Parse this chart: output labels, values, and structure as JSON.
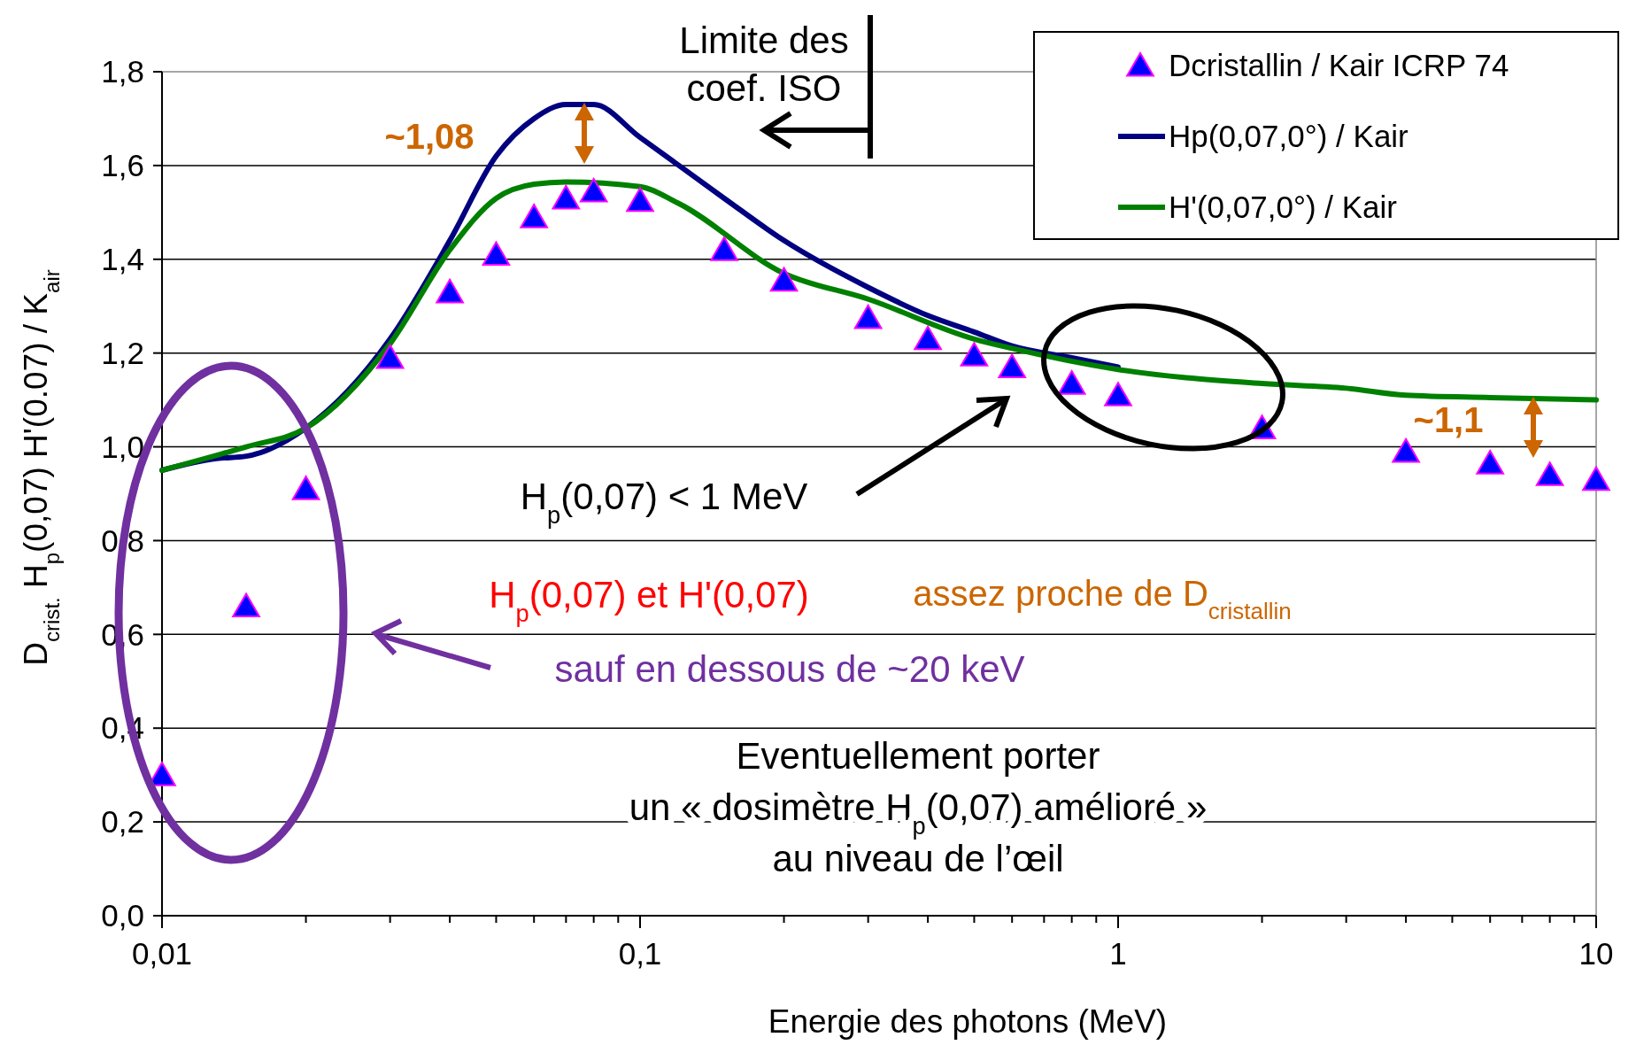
{
  "chart_data": {
    "type": "line",
    "xlabel": "Energie des photons (MeV)",
    "ylabel": "D$_{crist.}$  H$_{p}$(0,07) H'(0.07) / K$_{air}$",
    "log": "x",
    "grid": "y",
    "legend": "top right",
    "xlim": [
      0.01,
      10
    ],
    "ylim": [
      0,
      1.8
    ],
    "xticks": [
      {
        "value": 0.01,
        "label": "0,01"
      },
      {
        "value": 0.02,
        "label": null
      },
      {
        "value": 0.03,
        "label": null
      },
      {
        "value": 0.04,
        "label": null
      },
      {
        "value": 0.05,
        "label": null
      },
      {
        "value": 0.06,
        "label": null
      },
      {
        "value": 0.07,
        "label": null
      },
      {
        "value": 0.08,
        "label": null
      },
      {
        "value": 0.09,
        "label": null
      },
      {
        "value": 0.1,
        "label": "0,1"
      },
      {
        "value": 0.2,
        "label": null
      },
      {
        "value": 0.3,
        "label": null
      },
      {
        "value": 0.4,
        "label": null
      },
      {
        "value": 0.5,
        "label": null
      },
      {
        "value": 0.6,
        "label": null
      },
      {
        "value": 0.7,
        "label": null
      },
      {
        "value": 0.8,
        "label": null
      },
      {
        "value": 0.9,
        "label": null
      },
      {
        "value": 1,
        "label": "1"
      },
      {
        "value": 2,
        "label": null
      },
      {
        "value": 3,
        "label": null
      },
      {
        "value": 4,
        "label": null
      },
      {
        "value": 5,
        "label": null
      },
      {
        "value": 6,
        "label": null
      },
      {
        "value": 7,
        "label": null
      },
      {
        "value": 8,
        "label": null
      },
      {
        "value": 9,
        "label": null
      },
      {
        "value": 10,
        "label": "10"
      }
    ],
    "yticks": [
      {
        "value": 0,
        "label": "0,0"
      },
      {
        "value": 0.2,
        "label": "0,2"
      },
      {
        "value": 0.4,
        "label": "0,4"
      },
      {
        "value": 0.6,
        "label": "0,6"
      },
      {
        "value": 0.8,
        "label": "0,8"
      },
      {
        "value": 1,
        "label": "1,0"
      },
      {
        "value": 1.2,
        "label": "1,2"
      },
      {
        "value": 1.4,
        "label": "1,4"
      },
      {
        "value": 1.6,
        "label": "1,6"
      },
      {
        "value": 1.8,
        "label": "1,8"
      }
    ],
    "series": [
      {
        "name": "Dcristallin / Kair  ICRP 74",
        "type": "scatter",
        "marker": "triangle",
        "color": "#0000ff",
        "x": [
          0.01,
          0.015,
          0.02,
          0.03,
          0.04,
          0.05,
          0.06,
          0.07,
          0.08,
          0.1,
          0.15,
          0.2,
          0.3,
          0.4,
          0.5,
          0.6,
          0.8,
          1,
          2,
          4,
          6,
          8,
          10
        ],
        "values": [
          0.3,
          0.66,
          0.91,
          1.19,
          1.33,
          1.41,
          1.49,
          1.53,
          1.545,
          1.525,
          1.42,
          1.355,
          1.275,
          1.23,
          1.195,
          1.17,
          1.135,
          1.11,
          1.04,
          0.99,
          0.965,
          0.94,
          0.93
        ]
      },
      {
        "name": "Hp(0,07,0°) / Kair",
        "color": "#000080",
        "x": [
          0.01,
          0.013,
          0.015,
          0.02,
          0.03,
          0.04,
          0.05,
          0.06,
          0.07,
          0.08,
          0.1,
          0.15,
          0.2,
          0.3,
          0.4,
          0.5,
          0.6,
          0.8,
          1
        ],
        "values": [
          0.95,
          0.975,
          0.98,
          1.04,
          1.23,
          1.44,
          1.62,
          1.7,
          1.73,
          1.73,
          1.66,
          1.53,
          1.44,
          1.34,
          1.28,
          1.245,
          1.215,
          1.19,
          1.17
        ]
      },
      {
        "name": "H'(0,07,0°) / Kair",
        "color": "#008000",
        "x": [
          0.01,
          0.015,
          0.02,
          0.03,
          0.04,
          0.05,
          0.06,
          0.07,
          0.1,
          0.12,
          0.2,
          0.3,
          0.5,
          0.6,
          1,
          2,
          3,
          4,
          6,
          10
        ],
        "values": [
          0.95,
          1.0,
          1.04,
          1.22,
          1.42,
          1.53,
          1.56,
          1.565,
          1.555,
          1.52,
          1.37,
          1.315,
          1.23,
          1.21,
          1.165,
          1.135,
          1.125,
          1.11,
          1.105,
          1.1
        ]
      }
    ],
    "annotations": [
      "Limite des\ncoef. ISO",
      "~1,08",
      "~1,1",
      "H$_{p}$(0,07) < 1 MeV",
      "H$_{p}$(0,07) et H'(0,07)",
      "assez proche de D$_{cristallin}$",
      "sauf en dessous de ~20 keV",
      "Eventuellement porter\nun « dosimètre H$_{p}$(0,07) amélioré »\nau niveau de l’œil"
    ]
  }
}
